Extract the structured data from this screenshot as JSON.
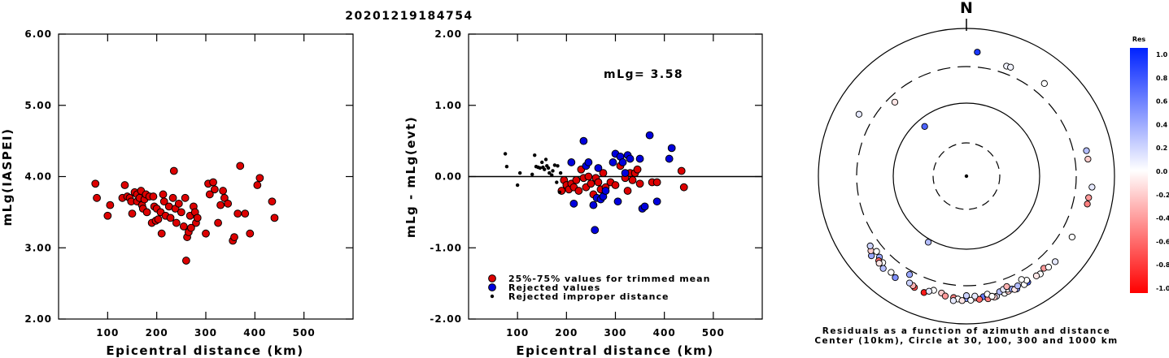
{
  "chart_data": [
    {
      "type": "scatter",
      "title": "20201219184754",
      "xlabel": "Epicentral distance (km)",
      "ylabel": "mLg(IASPEI)",
      "xlim": [
        0,
        600
      ],
      "ylim": [
        2.0,
        6.0
      ],
      "x_ticks": [
        "100",
        "200",
        "300",
        "400",
        "500"
      ],
      "y_ticks": [
        "2.00",
        "3.00",
        "4.00",
        "5.00",
        "6.00"
      ],
      "marker_color": "#dd0000",
      "points": [
        [
          75,
          3.9
        ],
        [
          78,
          3.7
        ],
        [
          100,
          3.45
        ],
        [
          105,
          3.6
        ],
        [
          130,
          3.7
        ],
        [
          135,
          3.88
        ],
        [
          140,
          3.72
        ],
        [
          145,
          3.7
        ],
        [
          148,
          3.65
        ],
        [
          150,
          3.48
        ],
        [
          155,
          3.78
        ],
        [
          160,
          3.75
        ],
        [
          160,
          3.65
        ],
        [
          165,
          3.7
        ],
        [
          168,
          3.8
        ],
        [
          170,
          3.6
        ],
        [
          172,
          3.55
        ],
        [
          175,
          3.68
        ],
        [
          178,
          3.75
        ],
        [
          180,
          3.5
        ],
        [
          185,
          3.72
        ],
        [
          190,
          3.35
        ],
        [
          193,
          3.72
        ],
        [
          195,
          3.58
        ],
        [
          198,
          3.38
        ],
        [
          200,
          3.55
        ],
        [
          203,
          3.4
        ],
        [
          208,
          3.5
        ],
        [
          210,
          3.2
        ],
        [
          213,
          3.75
        ],
        [
          215,
          3.65
        ],
        [
          218,
          3.45
        ],
        [
          225,
          3.58
        ],
        [
          228,
          3.42
        ],
        [
          233,
          3.7
        ],
        [
          235,
          4.08
        ],
        [
          238,
          3.55
        ],
        [
          240,
          3.35
        ],
        [
          245,
          3.62
        ],
        [
          250,
          3.5
        ],
        [
          255,
          3.3
        ],
        [
          258,
          3.7
        ],
        [
          260,
          2.82
        ],
        [
          262,
          3.15
        ],
        [
          265,
          3.22
        ],
        [
          268,
          3.45
        ],
        [
          270,
          3.28
        ],
        [
          275,
          3.58
        ],
        [
          278,
          3.5
        ],
        [
          280,
          3.35
        ],
        [
          283,
          3.42
        ],
        [
          300,
          3.2
        ],
        [
          305,
          3.9
        ],
        [
          308,
          3.75
        ],
        [
          315,
          3.92
        ],
        [
          318,
          3.82
        ],
        [
          325,
          3.35
        ],
        [
          330,
          3.6
        ],
        [
          335,
          3.8
        ],
        [
          338,
          3.7
        ],
        [
          345,
          3.62
        ],
        [
          355,
          3.1
        ],
        [
          358,
          3.15
        ],
        [
          365,
          3.48
        ],
        [
          370,
          4.15
        ],
        [
          380,
          3.48
        ],
        [
          390,
          3.2
        ],
        [
          405,
          3.88
        ],
        [
          410,
          3.98
        ],
        [
          435,
          3.65
        ],
        [
          440,
          3.42
        ]
      ]
    },
    {
      "type": "scatter",
      "xlabel": "Epicentral distance (km)",
      "ylabel": "mLg - mLg(evt)",
      "xlim": [
        0,
        600
      ],
      "ylim": [
        -2.0,
        2.0
      ],
      "x_ticks": [
        "100",
        "200",
        "300",
        "400",
        "500"
      ],
      "y_ticks": [
        "-2.00",
        "-1.00",
        "0.00",
        "1.00",
        "2.00"
      ],
      "annotation": "mLg= 3.58",
      "reference_line": 0.0,
      "legend": [
        {
          "label": "25%-75% values for trimmed mean",
          "color": "#dd0000"
        },
        {
          "label": "Rejected values",
          "color": "#0000dd"
        },
        {
          "label": "Rejected improper distance",
          "color": "#000000"
        }
      ],
      "series": [
        {
          "name": "25%-75% values for trimmed mean",
          "color": "#dd0000",
          "points": [
            [
              190,
              -0.2
            ],
            [
              195,
              -0.05
            ],
            [
              200,
              -0.12
            ],
            [
              205,
              -0.18
            ],
            [
              210,
              -0.1
            ],
            [
              215,
              -0.15
            ],
            [
              220,
              -0.05
            ],
            [
              225,
              -0.2
            ],
            [
              230,
              0.1
            ],
            [
              235,
              -0.02
            ],
            [
              240,
              -0.15
            ],
            [
              245,
              0.0
            ],
            [
              250,
              -0.1
            ],
            [
              255,
              -0.25
            ],
            [
              260,
              -0.02
            ],
            [
              265,
              -0.08
            ],
            [
              270,
              -0.18
            ],
            [
              275,
              0.05
            ],
            [
              280,
              -0.15
            ],
            [
              290,
              -0.08
            ],
            [
              300,
              -0.12
            ],
            [
              310,
              0.15
            ],
            [
              320,
              -0.02
            ],
            [
              325,
              -0.2
            ],
            [
              330,
              0.05
            ],
            [
              335,
              -0.05
            ],
            [
              340,
              0.05
            ],
            [
              345,
              0.1
            ],
            [
              350,
              -0.1
            ],
            [
              375,
              -0.08
            ],
            [
              385,
              -0.08
            ],
            [
              435,
              0.08
            ],
            [
              440,
              -0.15
            ]
          ]
        },
        {
          "name": "Rejected values",
          "color": "#0000dd",
          "points": [
            [
              210,
              0.2
            ],
            [
              215,
              -0.38
            ],
            [
              235,
              0.5
            ],
            [
              240,
              0.15
            ],
            [
              245,
              0.2
            ],
            [
              255,
              -0.4
            ],
            [
              258,
              -0.75
            ],
            [
              262,
              -0.3
            ],
            [
              265,
              0.12
            ],
            [
              270,
              -0.32
            ],
            [
              275,
              -0.28
            ],
            [
              280,
              -0.2
            ],
            [
              295,
              0.2
            ],
            [
              300,
              0.32
            ],
            [
              305,
              -0.35
            ],
            [
              310,
              0.28
            ],
            [
              315,
              0.2
            ],
            [
              320,
              0.05
            ],
            [
              325,
              0.3
            ],
            [
              330,
              0.25
            ],
            [
              350,
              0.25
            ],
            [
              355,
              -0.45
            ],
            [
              360,
              -0.42
            ],
            [
              370,
              0.58
            ],
            [
              385,
              -0.35
            ],
            [
              410,
              0.25
            ],
            [
              415,
              0.4
            ]
          ]
        },
        {
          "name": "Rejected improper distance",
          "color": "#000000",
          "points": [
            [
              75,
              0.32
            ],
            [
              78,
              0.14
            ],
            [
              100,
              -0.12
            ],
            [
              105,
              0.05
            ],
            [
              130,
              0.03
            ],
            [
              135,
              0.3
            ],
            [
              138,
              0.14
            ],
            [
              142,
              0.13
            ],
            [
              146,
              0.12
            ],
            [
              150,
              0.2
            ],
            [
              152,
              0.13
            ],
            [
              155,
              0.1
            ],
            [
              158,
              0.24
            ],
            [
              160,
              0.15
            ],
            [
              163,
              0.12
            ],
            [
              165,
              0.05
            ],
            [
              170,
              0.02
            ],
            [
              172,
              0.08
            ],
            [
              176,
              0.16
            ],
            [
              180,
              -0.08
            ],
            [
              182,
              0.15
            ],
            [
              186,
              -0.22
            ],
            [
              188,
              0.05
            ]
          ]
        }
      ]
    },
    {
      "type": "scatter",
      "projection": "polar",
      "north_label": "N",
      "caption_line1": "Residuals as a function of azimuth and distance",
      "caption_line2": "Center (10km), Circle at 30, 100, 300 and 1000 km",
      "rings": [
        {
          "km": 30,
          "style": "dashed"
        },
        {
          "km": 100,
          "style": "solid"
        },
        {
          "km": 300,
          "style": "dashed"
        },
        {
          "km": 1000,
          "style": "solid"
        }
      ],
      "colorbar": {
        "title": "Res",
        "tick_labels": [
          "1.0",
          "0.8",
          "0.6",
          "0.4",
          "0.2",
          "0.0",
          "-0.2",
          "-0.4",
          "-0.6",
          "-0.8",
          "-1.0"
        ],
        "max_color": "#0022ff",
        "mid_color": "#ffffff",
        "min_color": "#ff0000"
      },
      "stations": [
        [
          5,
          480,
          0.9
        ],
        [
          20,
          380,
          0.05
        ],
        [
          22,
          385,
          0.05
        ],
        [
          40,
          430,
          0.0
        ],
        [
          300,
          470,
          0.1
        ],
        [
          316,
          245,
          -0.1
        ],
        [
          320,
          78,
          0.7
        ],
        [
          78,
          450,
          0.3
        ],
        [
          82,
          450,
          -0.2
        ],
        [
          95,
          500,
          0.1
        ],
        [
          100,
          470,
          -0.4
        ],
        [
          103,
          470,
          -0.5
        ],
        [
          120,
          440,
          0.0
        ],
        [
          210,
          340,
          0.4
        ],
        [
          230,
          470,
          0.4
        ],
        [
          232,
          430,
          -0.2
        ],
        [
          234,
          400,
          0.2
        ],
        [
          210,
          110,
          0.3
        ],
        [
          230,
          380,
          0.0
        ],
        [
          227,
          400,
          0.4
        ],
        [
          224,
          420,
          0.0
        ],
        [
          226,
          440,
          -0.6
        ],
        [
          225,
          460,
          -0.1
        ],
        [
          222,
          475,
          0.3
        ],
        [
          215,
          470,
          0.5
        ],
        [
          218,
          445,
          0.0
        ],
        [
          200,
          470,
          -0.9
        ],
        [
          205,
          455,
          -0.7
        ],
        [
          206,
          440,
          -0.3
        ],
        [
          208,
          430,
          0.2
        ],
        [
          196,
          400,
          0.0
        ],
        [
          198,
          430,
          0.1
        ],
        [
          192,
          410,
          -0.2
        ],
        [
          190,
          440,
          -0.4
        ],
        [
          186,
          445,
          -0.5
        ],
        [
          184,
          460,
          0.0
        ],
        [
          180,
          450,
          0.5
        ],
        [
          176,
          445,
          -0.3
        ],
        [
          172,
          440,
          0.6
        ],
        [
          170,
          430,
          -0.2
        ],
        [
          174,
          470,
          -0.6
        ],
        [
          178,
          475,
          0.0
        ],
        [
          182,
          480,
          -0.1
        ],
        [
          186,
          490,
          0.1
        ],
        [
          170,
          480,
          -0.5
        ],
        [
          166,
          470,
          0.1
        ],
        [
          162,
          460,
          0.0
        ],
        [
          160,
          450,
          -0.2
        ],
        [
          160,
          420,
          0.0
        ],
        [
          158,
          440,
          0.4
        ],
        [
          156,
          465,
          0.5
        ],
        [
          164,
          420,
          0.3
        ],
        [
          162,
          405,
          0.1
        ],
        [
          150,
          450,
          0.7
        ],
        [
          152,
          455,
          0.0
        ],
        [
          157,
          460,
          -0.1
        ],
        [
          167,
          475,
          -0.2
        ],
        [
          143,
          450,
          0.0
        ],
        [
          155,
          430,
          0.3
        ],
        [
          150,
          420,
          0.0
        ],
        [
          145,
          440,
          -0.1
        ],
        [
          140,
          420,
          -0.4
        ],
        [
          138,
          450,
          0.0
        ],
        [
          134,
          460,
          0.1
        ],
        [
          160,
          385,
          -0.3
        ],
        [
          170,
          415,
          0.0
        ],
        [
          176,
          420,
          0.1
        ],
        [
          180,
          410,
          0.2
        ],
        [
          168,
          455,
          0.0
        ],
        [
          152,
          380,
          0.0
        ]
      ]
    }
  ]
}
